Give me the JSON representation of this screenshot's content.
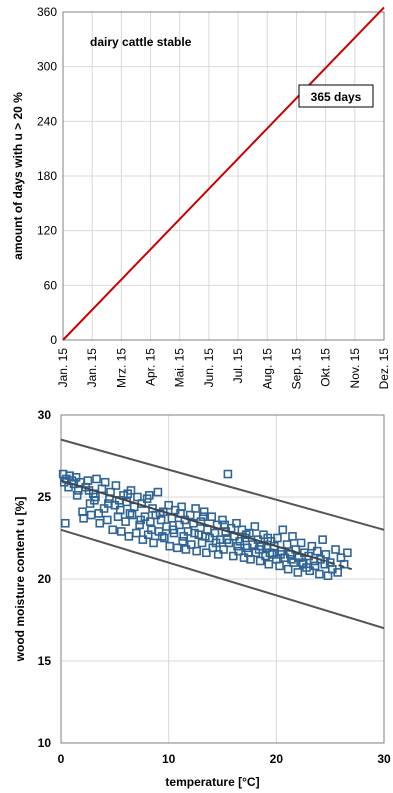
{
  "chart_data": [
    {
      "type": "line",
      "title": "",
      "annotation": "dairy cattle stable",
      "callout": "365 days",
      "ylabel": "amount of days with u > 20 %",
      "xlabel": "",
      "ylim": [
        0,
        360
      ],
      "yticks": [
        0,
        60,
        120,
        180,
        240,
        300,
        360
      ],
      "categories": [
        "Jan. 15",
        "Jan. 15",
        "Mrz. 15",
        "Apr. 15",
        "Mai. 15",
        "Jun. 15",
        "Jul. 15",
        "Aug. 15",
        "Sep. 15",
        "Okt. 15",
        "Nov. 15",
        "Dez. 15"
      ],
      "grid": true,
      "colors": {
        "series": "#cc0000"
      },
      "series": [
        {
          "x": [
            0,
            1
          ],
          "y": [
            0,
            365
          ]
        }
      ]
    },
    {
      "type": "scatter",
      "title": "",
      "xlabel": "temperature [°C]",
      "ylabel": "wood moisture content u [%]",
      "xlim": [
        0,
        30
      ],
      "ylim": [
        10,
        30
      ],
      "xticks": [
        0,
        10,
        20,
        30
      ],
      "yticks": [
        10,
        15,
        20,
        25,
        30
      ],
      "grid": true,
      "colors": {
        "points": "#2f6496",
        "bounds": "#555555"
      },
      "series": [
        {
          "name": "",
          "kind": "points",
          "trend": {
            "x0": 0,
            "y0": 26.0,
            "x1": 27,
            "y1": 20.6,
            "dash_from": 24
          }
        }
      ],
      "bounds": [
        {
          "x": [
            0,
            30
          ],
          "y": [
            28.5,
            23.0
          ]
        },
        {
          "x": [
            0,
            30
          ],
          "y": [
            23.0,
            17.0
          ]
        }
      ],
      "points": [
        [
          0.2,
          26.4
        ],
        [
          0.3,
          25.9
        ],
        [
          0.4,
          23.4
        ],
        [
          0.5,
          26.1
        ],
        [
          0.7,
          25.6
        ],
        [
          0.8,
          26.3
        ],
        [
          1.0,
          26.0
        ],
        [
          1.2,
          25.8
        ],
        [
          1.4,
          26.2
        ],
        [
          1.6,
          25.4
        ],
        [
          1.8,
          25.9
        ],
        [
          2.0,
          24.1
        ],
        [
          2.1,
          23.7
        ],
        [
          2.3,
          25.6
        ],
        [
          2.5,
          26.0
        ],
        [
          2.7,
          24.6
        ],
        [
          2.8,
          23.9
        ],
        [
          3.0,
          25.2
        ],
        [
          3.1,
          24.8
        ],
        [
          3.3,
          26.1
        ],
        [
          3.5,
          24.0
        ],
        [
          3.6,
          23.4
        ],
        [
          3.8,
          25.5
        ],
        [
          4.0,
          24.3
        ],
        [
          4.1,
          25.9
        ],
        [
          4.3,
          23.6
        ],
        [
          4.5,
          24.9
        ],
        [
          4.6,
          25.3
        ],
        [
          4.8,
          23.0
        ],
        [
          5.0,
          24.5
        ],
        [
          5.1,
          25.7
        ],
        [
          5.3,
          23.8
        ],
        [
          5.5,
          24.2
        ],
        [
          5.6,
          22.9
        ],
        [
          5.8,
          25.1
        ],
        [
          6.0,
          23.5
        ],
        [
          6.1,
          24.7
        ],
        [
          6.3,
          22.6
        ],
        [
          6.5,
          25.4
        ],
        [
          6.6,
          23.9
        ],
        [
          6.8,
          24.4
        ],
        [
          7.0,
          22.8
        ],
        [
          7.1,
          25.0
        ],
        [
          7.3,
          23.3
        ],
        [
          7.5,
          24.6
        ],
        [
          7.6,
          22.4
        ],
        [
          7.8,
          23.8
        ],
        [
          8.0,
          24.9
        ],
        [
          8.1,
          22.7
        ],
        [
          8.3,
          23.5
        ],
        [
          8.5,
          24.3
        ],
        [
          8.6,
          22.2
        ],
        [
          8.8,
          23.9
        ],
        [
          9.0,
          25.3
        ],
        [
          9.1,
          22.9
        ],
        [
          9.3,
          23.6
        ],
        [
          9.5,
          24.1
        ],
        [
          9.6,
          22.5
        ],
        [
          9.8,
          23.2
        ],
        [
          10.0,
          24.5
        ],
        [
          10.1,
          22.0
        ],
        [
          10.3,
          23.7
        ],
        [
          10.5,
          22.8
        ],
        [
          10.6,
          24.2
        ],
        [
          10.8,
          21.9
        ],
        [
          11.0,
          23.3
        ],
        [
          11.1,
          24.0
        ],
        [
          11.3,
          22.3
        ],
        [
          11.5,
          23.6
        ],
        [
          11.6,
          21.8
        ],
        [
          11.8,
          22.9
        ],
        [
          12.0,
          23.9
        ],
        [
          12.1,
          22.1
        ],
        [
          12.3,
          23.4
        ],
        [
          12.5,
          24.3
        ],
        [
          12.6,
          21.7
        ],
        [
          12.8,
          22.7
        ],
        [
          13.0,
          23.5
        ],
        [
          13.1,
          22.2
        ],
        [
          13.3,
          24.1
        ],
        [
          13.5,
          21.6
        ],
        [
          13.6,
          23.0
        ],
        [
          13.8,
          22.5
        ],
        [
          14.0,
          23.8
        ],
        [
          14.1,
          21.9
        ],
        [
          14.3,
          22.8
        ],
        [
          14.5,
          23.3
        ],
        [
          14.6,
          21.5
        ],
        [
          14.8,
          22.4
        ],
        [
          15.0,
          23.6
        ],
        [
          15.1,
          21.8
        ],
        [
          15.3,
          22.9
        ],
        [
          15.5,
          26.4
        ],
        [
          15.6,
          22.2
        ],
        [
          15.8,
          23.1
        ],
        [
          16.0,
          21.4
        ],
        [
          16.1,
          22.6
        ],
        [
          16.3,
          23.4
        ],
        [
          16.5,
          21.7
        ],
        [
          16.6,
          22.3
        ],
        [
          16.8,
          23.0
        ],
        [
          17.0,
          21.3
        ],
        [
          17.1,
          22.5
        ],
        [
          17.3,
          21.9
        ],
        [
          17.5,
          22.8
        ],
        [
          17.6,
          21.2
        ],
        [
          17.8,
          22.1
        ],
        [
          18.0,
          23.2
        ],
        [
          18.1,
          21.6
        ],
        [
          18.3,
          22.4
        ],
        [
          18.5,
          21.1
        ],
        [
          18.6,
          22.0
        ],
        [
          18.8,
          22.7
        ],
        [
          19.0,
          21.4
        ],
        [
          19.1,
          21.9
        ],
        [
          19.3,
          20.9
        ],
        [
          19.5,
          22.3
        ],
        [
          19.6,
          21.5
        ],
        [
          19.8,
          22.0
        ],
        [
          20.0,
          21.2
        ],
        [
          20.1,
          22.5
        ],
        [
          20.3,
          20.8
        ],
        [
          20.5,
          21.7
        ],
        [
          20.6,
          23.0
        ],
        [
          20.8,
          21.3
        ],
        [
          21.0,
          22.1
        ],
        [
          21.1,
          20.6
        ],
        [
          21.3,
          21.5
        ],
        [
          21.5,
          22.6
        ],
        [
          21.6,
          21.0
        ],
        [
          21.8,
          21.8
        ],
        [
          22.0,
          20.4
        ],
        [
          22.1,
          21.3
        ],
        [
          22.3,
          22.2
        ],
        [
          22.5,
          20.9
        ],
        [
          22.6,
          21.6
        ],
        [
          22.8,
          20.7
        ],
        [
          23.0,
          21.4
        ],
        [
          23.1,
          20.5
        ],
        [
          23.3,
          22.0
        ],
        [
          23.5,
          21.1
        ],
        [
          23.6,
          20.8
        ],
        [
          23.8,
          21.7
        ],
        [
          24.0,
          20.3
        ],
        [
          24.1,
          21.2
        ],
        [
          24.3,
          22.4
        ],
        [
          24.5,
          20.9
        ],
        [
          24.6,
          21.5
        ],
        [
          24.8,
          20.2
        ],
        [
          25.0,
          21.0
        ],
        [
          25.2,
          20.6
        ],
        [
          25.5,
          21.8
        ],
        [
          25.7,
          20.4
        ],
        [
          26.0,
          21.3
        ],
        [
          26.3,
          20.9
        ],
        [
          26.6,
          21.6
        ],
        [
          3.2,
          25.0
        ],
        [
          4.4,
          24.6
        ],
        [
          5.4,
          24.8
        ],
        [
          6.4,
          24.0
        ],
        [
          7.4,
          23.6
        ],
        [
          8.4,
          23.0
        ],
        [
          9.4,
          22.6
        ],
        [
          10.4,
          23.0
        ],
        [
          11.4,
          22.6
        ],
        [
          12.4,
          22.8
        ],
        [
          13.4,
          22.6
        ],
        [
          14.4,
          22.2
        ],
        [
          15.4,
          22.4
        ],
        [
          16.4,
          22.0
        ],
        [
          17.4,
          21.6
        ],
        [
          18.4,
          21.8
        ],
        [
          19.4,
          21.6
        ],
        [
          20.4,
          21.5
        ],
        [
          21.4,
          21.2
        ],
        [
          22.4,
          21.0
        ],
        [
          9.2,
          24.0
        ],
        [
          11.2,
          24.4
        ],
        [
          13.2,
          23.8
        ],
        [
          15.2,
          23.3
        ],
        [
          17.2,
          22.7
        ],
        [
          19.2,
          22.5
        ],
        [
          6.2,
          25.2
        ],
        [
          8.2,
          25.1
        ],
        [
          2.6,
          25.4
        ],
        [
          1.5,
          25.1
        ]
      ]
    }
  ]
}
